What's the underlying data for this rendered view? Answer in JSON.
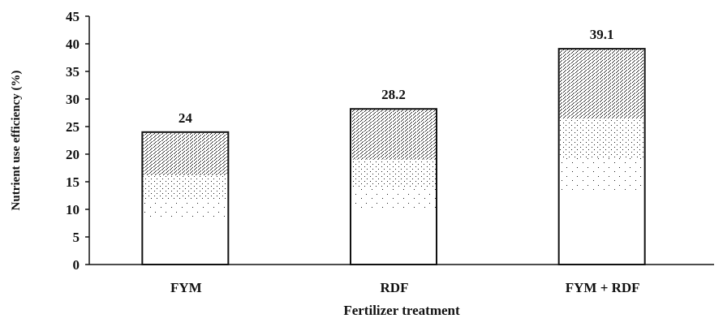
{
  "chart_data": {
    "type": "bar",
    "categories": [
      "FYM",
      "RDF",
      "FYM + RDF"
    ],
    "values": [
      24,
      28.2,
      39.1
    ],
    "data_labels": [
      "24",
      "28.2",
      "39.1"
    ],
    "title": "",
    "xlabel": "Fertilizer treatment",
    "ylabel": "Nutrient use efficiency (%)",
    "ylim": [
      0,
      45
    ],
    "yticks": [
      "0",
      "5",
      "10",
      "15",
      "20",
      "25",
      "30",
      "35",
      "40",
      "45"
    ],
    "grid": false,
    "legend": "none",
    "colors": {
      "bar_fill": "#ffffff",
      "bar_stroke": "#111111",
      "stipple": "#1a1a1a",
      "axis": "#111111"
    }
  }
}
